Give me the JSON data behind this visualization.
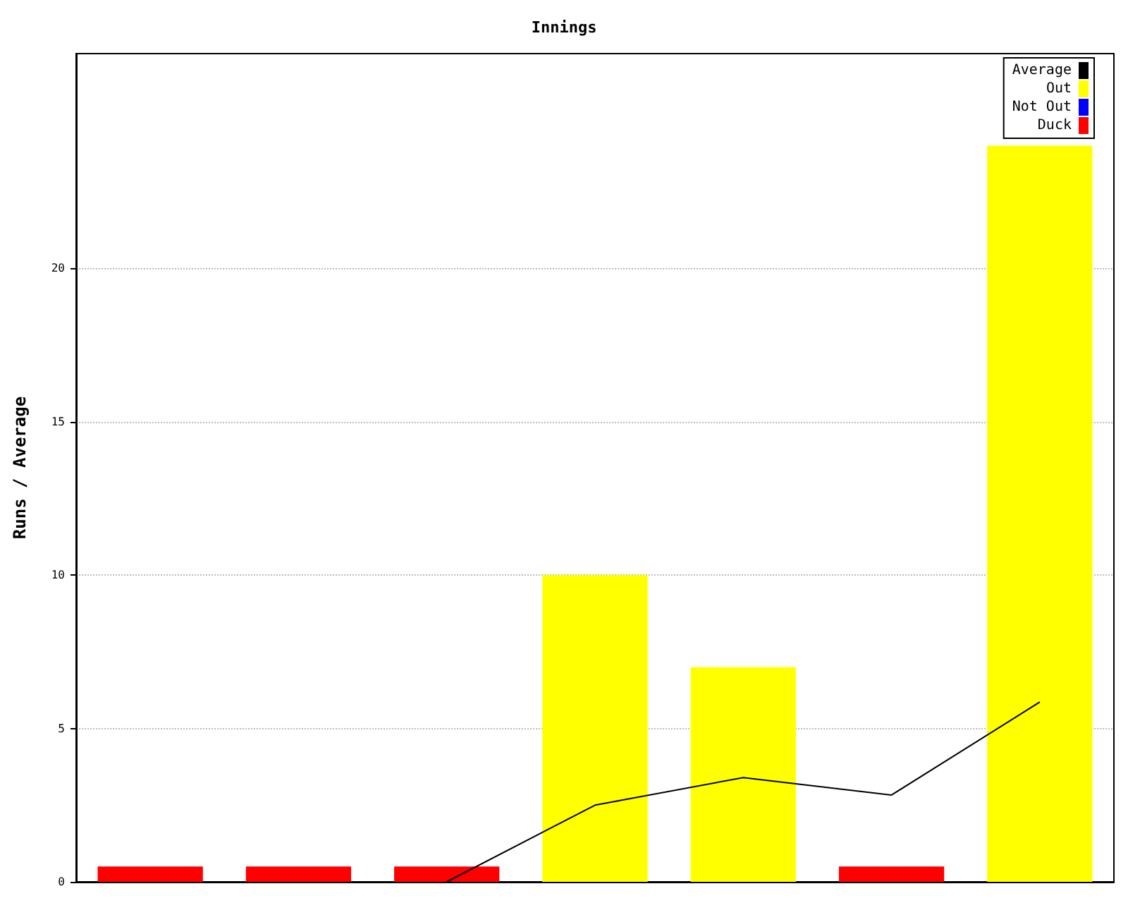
{
  "chart_data": {
    "type": "bar",
    "title": "Innings",
    "ylabel": "Runs / Average",
    "categories": [
      null,
      null,
      null,
      null,
      null,
      null,
      null
    ],
    "stacked": true,
    "ylim": [
      0,
      27
    ],
    "yticks": [
      0,
      5,
      10,
      15,
      20
    ],
    "grid": "y",
    "legend": "top right",
    "series": [
      {
        "name": "Average",
        "type": "line",
        "color": "#000000",
        "marker": "none",
        "values": [
          null,
          null,
          0,
          2.5,
          3.4,
          2.83,
          5.86
        ]
      },
      {
        "name": "Out",
        "color": "#ffff00",
        "values": [
          null,
          null,
          null,
          10,
          7,
          null,
          24
        ]
      },
      {
        "name": "Not Out",
        "color": "#0000ff",
        "values": [
          null,
          null,
          null,
          null,
          null,
          null,
          null
        ]
      },
      {
        "name": "Duck",
        "color": "#ff0000",
        "values": [
          0.5,
          0.5,
          0.5,
          null,
          null,
          0.5,
          null
        ]
      }
    ]
  }
}
